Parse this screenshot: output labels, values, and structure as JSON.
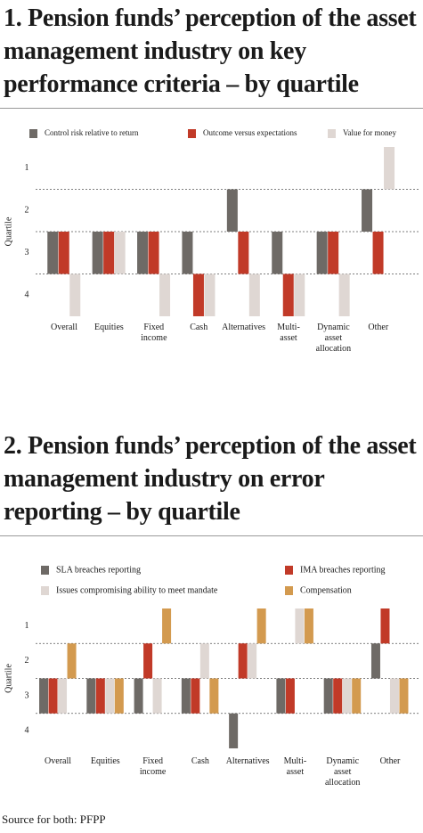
{
  "chart_data": [
    {
      "type": "bar",
      "title": "1. Pension funds’ perception of the asset management industry on key performance criteria – by quartile",
      "y_label": "Quartile",
      "categories": [
        "Overall",
        "Equities",
        "Fixed\nincome",
        "Cash",
        "Alternatives",
        "Multi-\nasset",
        "Dynamic\nasset\nallocation",
        "Other"
      ],
      "series": [
        {
          "name": "Control risk relative to return",
          "color": "#6e6a66",
          "values": [
            3,
            3,
            3,
            3,
            2,
            3,
            3,
            2
          ]
        },
        {
          "name": "Outcome versus expectations",
          "color": "#c13a28",
          "values": [
            3,
            3,
            3,
            4,
            3,
            4,
            3,
            3
          ]
        },
        {
          "name": "Value for money",
          "color": "#dfd7d3",
          "values": [
            4,
            3,
            4,
            4,
            4,
            4,
            4,
            1
          ]
        }
      ],
      "ylim": [
        4.5,
        0.5
      ],
      "yticks": [
        1,
        2,
        3,
        4
      ],
      "grid": true
    },
    {
      "type": "bar",
      "title": "2. Pension funds’ perception of the asset management industry on error reporting – by quartile",
      "y_label": "Quartile",
      "categories": [
        "Overall",
        "Equities",
        "Fixed\nincome",
        "Cash",
        "Alternatives",
        "Multi-\nasset",
        "Dynamic\nasset\nallocation",
        "Other"
      ],
      "series": [
        {
          "name": "SLA breaches reporting",
          "color": "#6e6a66",
          "values": [
            3,
            3,
            3,
            3,
            4,
            3,
            3,
            2
          ]
        },
        {
          "name": "IMA breaches reporting",
          "color": "#c13a28",
          "values": [
            3,
            3,
            2,
            3,
            2,
            3,
            3,
            1
          ]
        },
        {
          "name": "Issues compromising ability to meet mandate",
          "color": "#dfd7d3",
          "values": [
            3,
            3,
            3,
            2,
            2,
            1,
            3,
            3
          ]
        },
        {
          "name": "Compensation",
          "color": "#d39a4f",
          "values": [
            2,
            3,
            1,
            3,
            1,
            1,
            3,
            3
          ]
        }
      ],
      "ylim": [
        4.5,
        0.5
      ],
      "yticks": [
        1,
        2,
        3,
        4
      ],
      "grid": true
    }
  ],
  "source": "Source for both: PFPP"
}
